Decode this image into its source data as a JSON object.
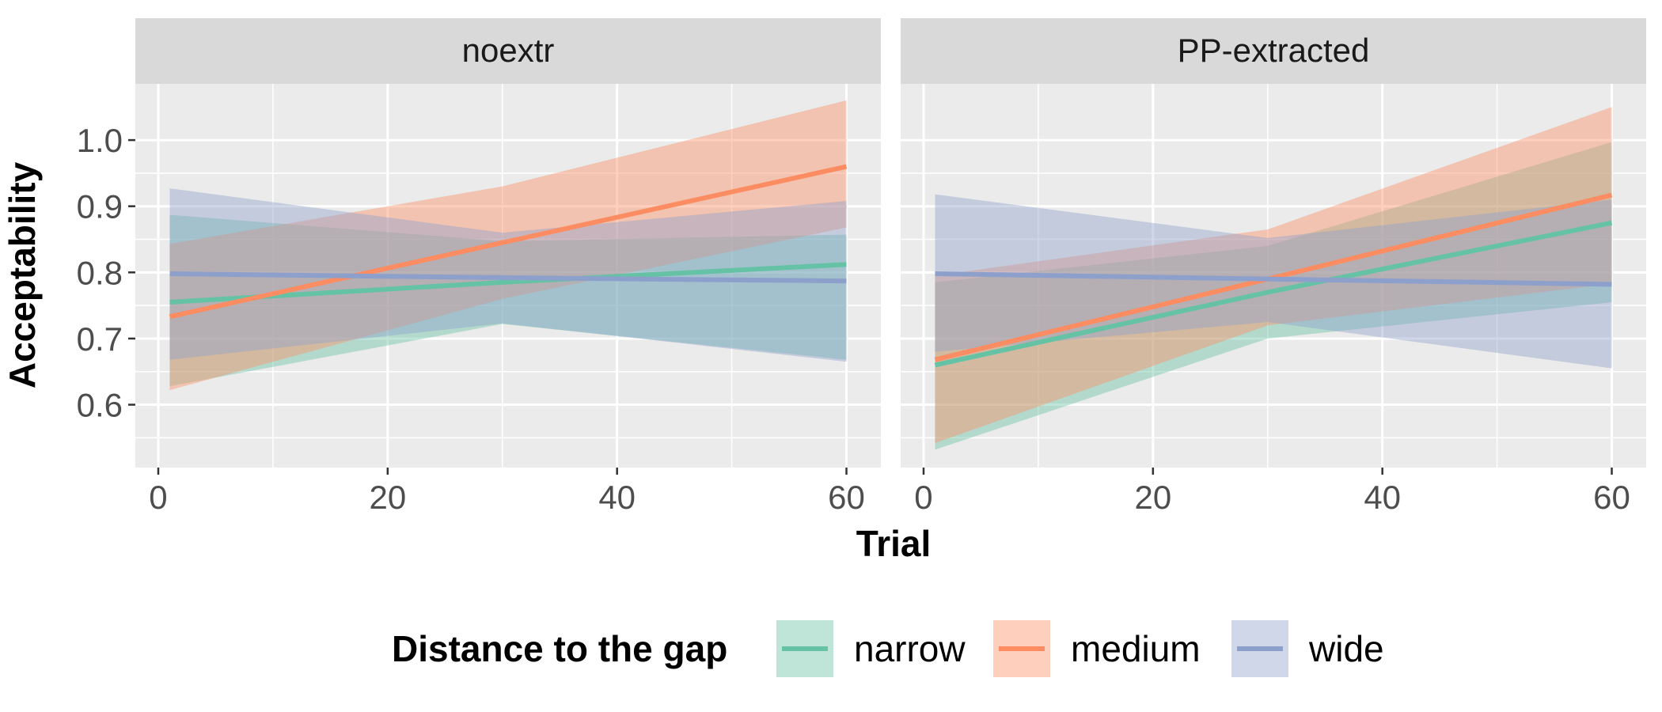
{
  "chart_data": {
    "type": "line",
    "xlabel": "Trial",
    "ylabel": "Acceptability",
    "xlim": [
      -2,
      63
    ],
    "ylim": [
      0.505,
      1.085
    ],
    "x_ticks": [
      0,
      20,
      40,
      60
    ],
    "y_ticks": [
      0.6,
      0.7,
      0.8,
      0.9,
      1.0
    ],
    "y_tick_labels": [
      "0.6",
      "0.7",
      "0.8",
      "0.9",
      "1.0"
    ],
    "grid": true,
    "legend": {
      "title": "Distance to the gap",
      "position": "bottom",
      "entries": [
        "narrow",
        "medium",
        "wide"
      ]
    },
    "colors": {
      "narrow": "#66c2a5",
      "medium": "#fc8d62",
      "wide": "#8da0cb",
      "panel_bg": "#ebebeb",
      "strip_bg": "#d9d9d9",
      "grid": "#ffffff"
    },
    "panels": [
      {
        "facet": "noextr",
        "series": [
          {
            "name": "narrow",
            "x": [
              1,
              30,
              60
            ],
            "y": [
              0.755,
              0.785,
              0.812
            ],
            "lower": [
              0.628,
              0.722,
              0.668
            ],
            "upper": [
              0.887,
              0.847,
              0.857
            ]
          },
          {
            "name": "medium",
            "x": [
              1,
              30,
              60
            ],
            "y": [
              0.733,
              0.845,
              0.96
            ],
            "lower": [
              0.622,
              0.76,
              0.868
            ],
            "upper": [
              0.843,
              0.93,
              1.06
            ]
          },
          {
            "name": "wide",
            "x": [
              1,
              30,
              60
            ],
            "y": [
              0.798,
              0.792,
              0.787
            ],
            "lower": [
              0.668,
              0.723,
              0.665
            ],
            "upper": [
              0.927,
              0.86,
              0.908
            ]
          }
        ]
      },
      {
        "facet": "PP-extracted",
        "series": [
          {
            "name": "narrow",
            "x": [
              1,
              30,
              60
            ],
            "y": [
              0.66,
              0.77,
              0.875
            ],
            "lower": [
              0.532,
              0.7,
              0.755
            ],
            "upper": [
              0.785,
              0.84,
              0.997
            ]
          },
          {
            "name": "medium",
            "x": [
              1,
              30,
              60
            ],
            "y": [
              0.668,
              0.79,
              0.917
            ],
            "lower": [
              0.542,
              0.72,
              0.783
            ],
            "upper": [
              0.795,
              0.865,
              1.05
            ]
          },
          {
            "name": "wide",
            "x": [
              1,
              30,
              60
            ],
            "y": [
              0.798,
              0.79,
              0.782
            ],
            "lower": [
              0.68,
              0.725,
              0.655
            ],
            "upper": [
              0.918,
              0.852,
              0.91
            ]
          }
        ]
      }
    ]
  }
}
